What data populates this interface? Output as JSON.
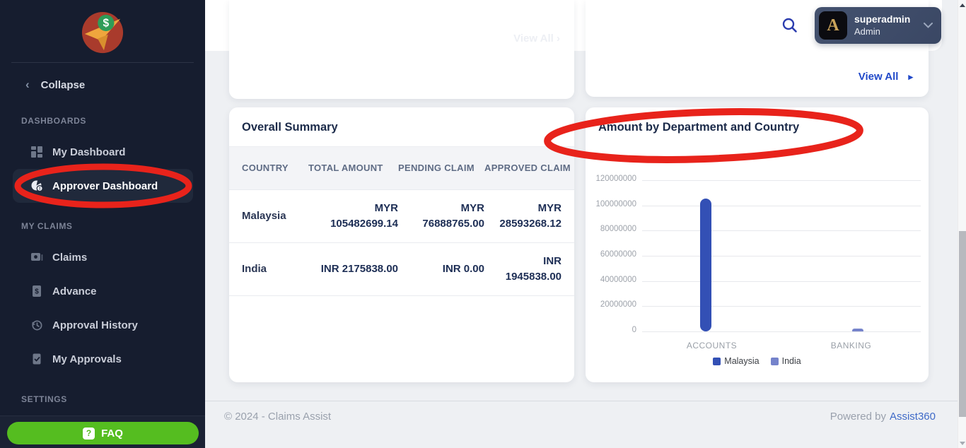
{
  "sidebar": {
    "collapse_label": "Collapse",
    "sections": [
      {
        "label": "DASHBOARDS",
        "items": [
          {
            "label": "My Dashboard"
          },
          {
            "label": "Approver Dashboard"
          }
        ]
      },
      {
        "label": "MY CLAIMS",
        "items": [
          {
            "label": "Claims"
          },
          {
            "label": "Advance"
          },
          {
            "label": "Approval History"
          },
          {
            "label": "My Approvals"
          }
        ]
      },
      {
        "label": "SETTINGS",
        "items": []
      }
    ],
    "faq_label": "FAQ"
  },
  "header": {
    "user": {
      "name": "superadmin",
      "role": "Admin",
      "avatar_letter": "A"
    }
  },
  "top_cards": {
    "left": {
      "view_all_label": "View All"
    },
    "right": {
      "view_all_label": "View All"
    }
  },
  "summary": {
    "title": "Overall Summary",
    "columns": [
      "COUNTRY",
      "TOTAL AMOUNT",
      "PENDING CLAIM",
      "APPROVED CLAIM"
    ],
    "rows": [
      {
        "country": "Malaysia",
        "total": "MYR 105482699.14",
        "pending": "MYR 76888765.00",
        "approved": "MYR 28593268.12"
      },
      {
        "country": "India",
        "total": "INR 2175838.00",
        "pending": "INR 0.00",
        "approved": "INR 1945838.00"
      }
    ]
  },
  "chart_card": {
    "title": "Amount by Department and Country"
  },
  "chart_data": {
    "type": "bar",
    "title": "Amount by Department and Country",
    "categories": [
      "ACCOUNTS",
      "BANKING"
    ],
    "series": [
      {
        "name": "Malaysia",
        "color": "#3350b5",
        "values": [
          105482699.14,
          0
        ]
      },
      {
        "name": "India",
        "color": "#7583cb",
        "values": [
          0,
          2175838.0
        ]
      }
    ],
    "ylim": [
      0,
      120000000
    ],
    "y_ticks": [
      0,
      20000000,
      40000000,
      60000000,
      80000000,
      100000000,
      120000000
    ],
    "grid": true,
    "legend_position": "bottom",
    "xlabel": "",
    "ylabel": ""
  },
  "footer": {
    "copyright": "© 2024 - Claims Assist",
    "powered_by_label": "Powered by",
    "brand": "Assist360"
  },
  "icons": {
    "collapse_chevron": "‹",
    "view_all_arrow": "▸",
    "faint_view_all_arrow": "›",
    "faq_question": "?"
  },
  "colors": {
    "annotation_red": "#e8231b",
    "accent_blue": "#2149c9",
    "faq_green": "#55bd20",
    "sidebar_bg": "#161d2f",
    "malaysia_bar": "#3350b5",
    "india_bar": "#7583cb"
  }
}
